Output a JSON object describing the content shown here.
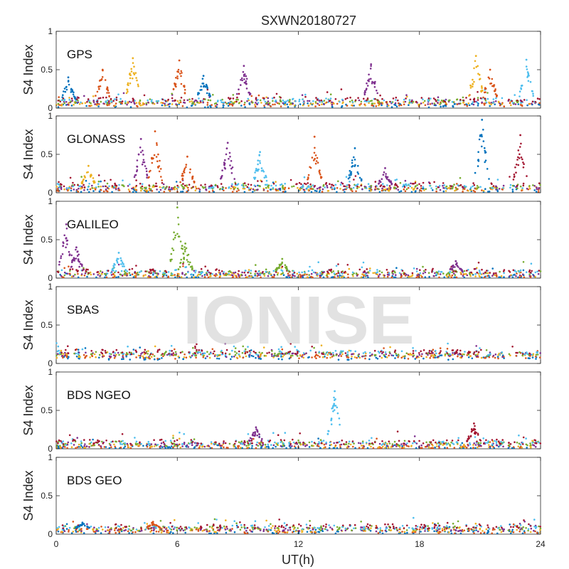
{
  "chart_data": {
    "type": "scatter",
    "title": "SXWN20180727",
    "xlabel": "UT(h)",
    "ylabel": "S4 Index",
    "xlim": [
      0,
      24
    ],
    "ylim": [
      0,
      1
    ],
    "xticks": [
      "0",
      "6",
      "12",
      "18",
      "24"
    ],
    "yticks": [
      "0",
      "0.5",
      "1"
    ],
    "watermark": "IONISE",
    "colors": [
      "#0072BD",
      "#D95319",
      "#EDB120",
      "#7E2F8E",
      "#77AC30",
      "#4DBEEE",
      "#A2142F"
    ],
    "panels": [
      {
        "name": "GPS",
        "baseline": 0.08,
        "gaps": [
          [
            22.2,
            22.4
          ],
          [
            23.2,
            23.3
          ]
        ],
        "spikes": [
          {
            "x": 0.6,
            "peak": 0.4,
            "series": 0
          },
          {
            "x": 2.3,
            "peak": 0.5,
            "series": 1
          },
          {
            "x": 3.8,
            "peak": 0.65,
            "series": 2
          },
          {
            "x": 6.1,
            "peak": 0.62,
            "series": 1
          },
          {
            "x": 7.3,
            "peak": 0.42,
            "series": 0
          },
          {
            "x": 9.3,
            "peak": 0.55,
            "series": 3
          },
          {
            "x": 15.6,
            "peak": 0.57,
            "series": 3
          },
          {
            "x": 20.8,
            "peak": 0.68,
            "series": 2
          },
          {
            "x": 21.5,
            "peak": 0.5,
            "series": 1
          },
          {
            "x": 23.3,
            "peak": 0.63,
            "series": 5
          }
        ]
      },
      {
        "name": "GLONASS",
        "baseline": 0.07,
        "gaps": [
          [
            22.2,
            22.4
          ],
          [
            23.2,
            23.3
          ]
        ],
        "spikes": [
          {
            "x": 1.6,
            "peak": 0.35,
            "series": 2
          },
          {
            "x": 4.2,
            "peak": 0.7,
            "series": 3
          },
          {
            "x": 4.9,
            "peak": 0.8,
            "series": 1
          },
          {
            "x": 6.5,
            "peak": 0.47,
            "series": 1
          },
          {
            "x": 8.5,
            "peak": 0.65,
            "series": 3
          },
          {
            "x": 10.1,
            "peak": 0.53,
            "series": 5
          },
          {
            "x": 12.8,
            "peak": 0.73,
            "series": 1
          },
          {
            "x": 14.8,
            "peak": 0.58,
            "series": 0
          },
          {
            "x": 16.3,
            "peak": 0.32,
            "series": 3
          },
          {
            "x": 21.1,
            "peak": 0.95,
            "series": 0
          },
          {
            "x": 23.0,
            "peak": 0.75,
            "series": 6
          }
        ]
      },
      {
        "name": "GALILEO",
        "baseline": 0.06,
        "gaps": [
          [
            22.2,
            22.4
          ],
          [
            23.2,
            23.3
          ]
        ],
        "spikes": [
          {
            "x": 0.5,
            "peak": 0.7,
            "series": 3
          },
          {
            "x": 1.0,
            "peak": 0.4,
            "series": 3
          },
          {
            "x": 3.1,
            "peak": 0.33,
            "series": 5
          },
          {
            "x": 6.0,
            "peak": 0.92,
            "series": 4
          },
          {
            "x": 6.4,
            "peak": 0.45,
            "series": 4
          },
          {
            "x": 11.2,
            "peak": 0.25,
            "series": 4
          },
          {
            "x": 19.8,
            "peak": 0.22,
            "series": 3
          }
        ]
      },
      {
        "name": "SBAS",
        "baseline": 0.12,
        "gaps": [
          [
            22.2,
            22.4
          ]
        ],
        "spikes": []
      },
      {
        "name": "BDS NGEO",
        "baseline": 0.06,
        "gaps": [
          [
            22.2,
            22.4
          ]
        ],
        "spikes": [
          {
            "x": 9.9,
            "peak": 0.28,
            "series": 3
          },
          {
            "x": 13.8,
            "peak": 0.75,
            "series": 5
          },
          {
            "x": 20.7,
            "peak": 0.33,
            "series": 6
          }
        ]
      },
      {
        "name": "BDS GEO",
        "baseline": 0.07,
        "gaps": [
          [
            22.2,
            22.4
          ]
        ],
        "spikes": [
          {
            "x": 1.3,
            "peak": 0.15,
            "series": 0
          },
          {
            "x": 4.8,
            "peak": 0.16,
            "series": 1
          }
        ]
      }
    ]
  }
}
